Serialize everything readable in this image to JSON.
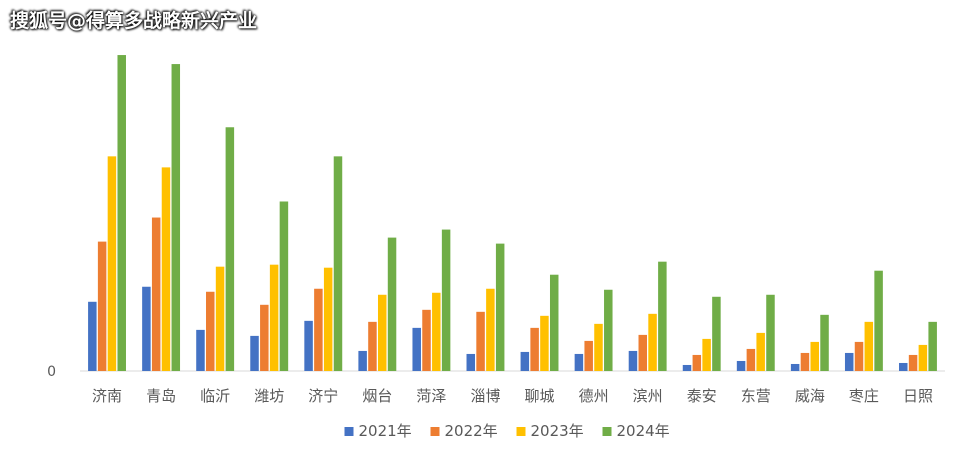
{
  "watermark": "搜狐号@得算多战略新兴产业",
  "chart_data": {
    "type": "bar",
    "categories": [
      "济南",
      "青岛",
      "临沂",
      "潍坊",
      "济宁",
      "烟台",
      "菏泽",
      "淄博",
      "聊城",
      "德州",
      "滨州",
      "泰安",
      "东营",
      "威海",
      "枣庄",
      "日照"
    ],
    "series": [
      {
        "name": "2021年",
        "color": "#4472C4",
        "values": [
          69,
          84,
          41,
          35,
          50,
          20,
          43,
          17,
          19,
          17,
          20,
          6,
          10,
          7,
          18,
          8
        ]
      },
      {
        "name": "2022年",
        "color": "#ED7D31",
        "values": [
          129,
          153,
          79,
          66,
          82,
          49,
          61,
          59,
          43,
          30,
          36,
          16,
          22,
          18,
          29,
          16
        ]
      },
      {
        "name": "2023年",
        "color": "#FFC000",
        "values": [
          214,
          203,
          104,
          106,
          103,
          76,
          78,
          82,
          55,
          47,
          57,
          32,
          38,
          29,
          49,
          26
        ]
      },
      {
        "name": "2024年",
        "color": "#70AD47",
        "values": [
          315,
          306,
          243,
          169,
          214,
          133,
          141,
          127,
          96,
          81,
          109,
          74,
          76,
          56,
          100,
          49
        ]
      }
    ],
    "yticks": [
      "0"
    ],
    "ylim": [
      0,
      330
    ],
    "legend": "bottom",
    "grid": false
  }
}
